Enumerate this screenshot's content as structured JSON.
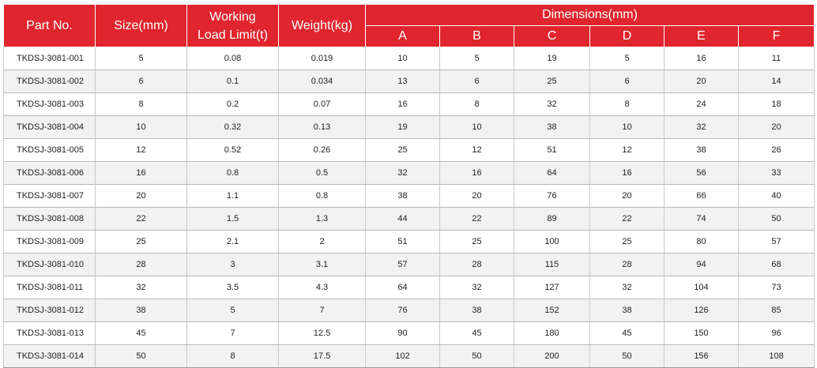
{
  "table": {
    "headers": {
      "part_no": "Part No.",
      "size": "Size(mm)",
      "wll_line1": "Working",
      "wll_line2": "Load Limit(t)",
      "weight": "Weight(kg)",
      "dimensions": "Dimensions(mm)",
      "dim_cols": [
        "A",
        "B",
        "C",
        "D",
        "E",
        "F"
      ]
    },
    "colors": {
      "header_bg": "#e0252e",
      "header_text": "#ffffff",
      "alt_row_bg": "#f2f2f2"
    },
    "rows": [
      [
        "TKDSJ-3081-001",
        "5",
        "0.08",
        "0.019",
        "10",
        "5",
        "19",
        "5",
        "16",
        "11"
      ],
      [
        "TKDSJ-3081-002",
        "6",
        "0.1",
        "0.034",
        "13",
        "6",
        "25",
        "6",
        "20",
        "14"
      ],
      [
        "TKDSJ-3081-003",
        "8",
        "0.2",
        "0.07",
        "16",
        "8",
        "32",
        "8",
        "24",
        "18"
      ],
      [
        "TKDSJ-3081-004",
        "10",
        "0.32",
        "0.13",
        "19",
        "10",
        "38",
        "10",
        "32",
        "20"
      ],
      [
        "TKDSJ-3081-005",
        "12",
        "0.52",
        "0.26",
        "25",
        "12",
        "51",
        "12",
        "38",
        "26"
      ],
      [
        "TKDSJ-3081-006",
        "16",
        "0.8",
        "0.5",
        "32",
        "16",
        "64",
        "16",
        "56",
        "33"
      ],
      [
        "TKDSJ-3081-007",
        "20",
        "1.1",
        "0.8",
        "38",
        "20",
        "76",
        "20",
        "66",
        "40"
      ],
      [
        "TKDSJ-3081-008",
        "22",
        "1.5",
        "1.3",
        "44",
        "22",
        "89",
        "22",
        "74",
        "50"
      ],
      [
        "TKDSJ-3081-009",
        "25",
        "2.1",
        "2",
        "51",
        "25",
        "100",
        "25",
        "80",
        "57"
      ],
      [
        "TKDSJ-3081-010",
        "28",
        "3",
        "3.1",
        "57",
        "28",
        "115",
        "28",
        "94",
        "68"
      ],
      [
        "TKDSJ-3081-011",
        "32",
        "3.5",
        "4.3",
        "64",
        "32",
        "127",
        "32",
        "104",
        "73"
      ],
      [
        "TKDSJ-3081-012",
        "38",
        "5",
        "7",
        "76",
        "38",
        "152",
        "38",
        "126",
        "85"
      ],
      [
        "TKDSJ-3081-013",
        "45",
        "7",
        "12.5",
        "90",
        "45",
        "180",
        "45",
        "150",
        "96"
      ],
      [
        "TKDSJ-3081-014",
        "50",
        "8",
        "17.5",
        "102",
        "50",
        "200",
        "50",
        "156",
        "108"
      ]
    ]
  }
}
